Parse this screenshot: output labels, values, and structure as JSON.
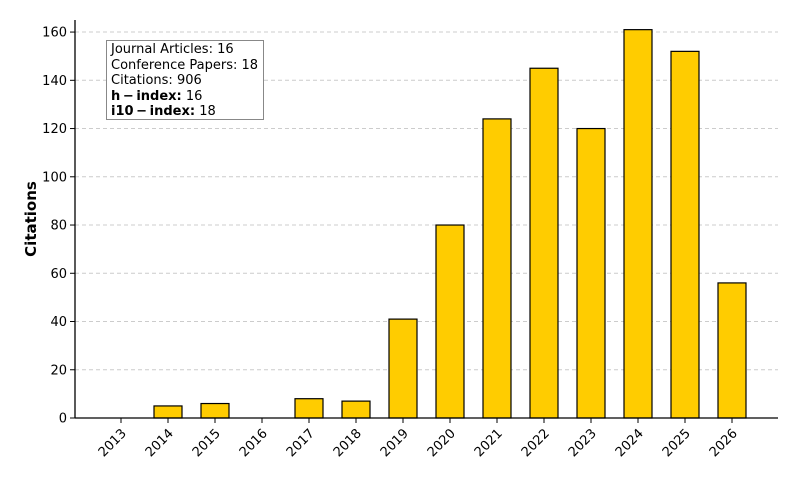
{
  "chart_data": {
    "type": "bar",
    "categories": [
      "2013",
      "2014",
      "2015",
      "2016",
      "2017",
      "2018",
      "2019",
      "2020",
      "2021",
      "2022",
      "2023",
      "2024",
      "2025",
      "2026"
    ],
    "values": [
      0,
      5,
      6,
      0,
      8,
      7,
      41,
      80,
      124,
      145,
      120,
      161,
      152,
      56
    ],
    "title": "",
    "xlabel": "",
    "ylabel": "Citations",
    "ylim": [
      0,
      165
    ],
    "yticks": [
      0,
      20,
      40,
      60,
      80,
      100,
      120,
      140,
      160
    ],
    "grid": "horizontal dashed",
    "bar_color": "#FFCC00",
    "bar_edge_color": "#000000"
  },
  "stats": {
    "journal_articles": "Journal Articles: 16",
    "conference_papers": "Conference Papers: 18",
    "citations": "Citations: 906",
    "h_index_label": "h − index:",
    "h_index_value": "16",
    "i10_index_label": "i10 − index:",
    "i10_index_value": "18"
  }
}
